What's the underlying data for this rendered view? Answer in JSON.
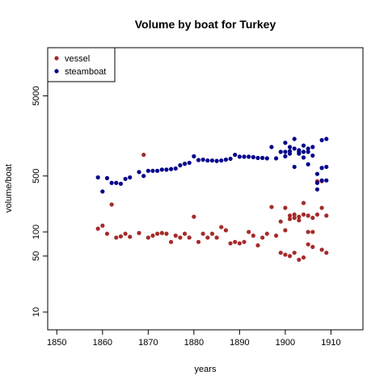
{
  "chart_data": {
    "type": "scatter",
    "title": "Volume by boat for Turkey",
    "xlabel": "years",
    "ylabel": "volume/boat",
    "xlim": [
      1848,
      1917
    ],
    "ylim": [
      6,
      20000
    ],
    "y_scale": "log",
    "x_ticks": [
      1850,
      1860,
      1870,
      1880,
      1890,
      1900,
      1910
    ],
    "y_ticks": [
      10,
      50,
      100,
      500,
      5000
    ],
    "grid": false,
    "legend_position": "top-left",
    "series": [
      {
        "name": "vessel",
        "color": "#a52a2a",
        "points": [
          [
            1859,
            110
          ],
          [
            1860,
            120
          ],
          [
            1861,
            95
          ],
          [
            1862,
            220
          ],
          [
            1863,
            85
          ],
          [
            1864,
            88
          ],
          [
            1865,
            95
          ],
          [
            1866,
            87
          ],
          [
            1868,
            97
          ],
          [
            1869,
            920
          ],
          [
            1870,
            85
          ],
          [
            1871,
            90
          ],
          [
            1872,
            95
          ],
          [
            1873,
            97
          ],
          [
            1874,
            95
          ],
          [
            1875,
            75
          ],
          [
            1876,
            90
          ],
          [
            1877,
            85
          ],
          [
            1878,
            95
          ],
          [
            1879,
            85
          ],
          [
            1880,
            155
          ],
          [
            1881,
            75
          ],
          [
            1882,
            95
          ],
          [
            1883,
            85
          ],
          [
            1884,
            95
          ],
          [
            1885,
            85
          ],
          [
            1886,
            115
          ],
          [
            1887,
            105
          ],
          [
            1888,
            72
          ],
          [
            1889,
            75
          ],
          [
            1890,
            72
          ],
          [
            1891,
            75
          ],
          [
            1892,
            100
          ],
          [
            1893,
            90
          ],
          [
            1894,
            68
          ],
          [
            1895,
            85
          ],
          [
            1896,
            95
          ],
          [
            1897,
            205
          ],
          [
            1898,
            90
          ],
          [
            1899,
            135
          ],
          [
            1899,
            55
          ],
          [
            1900,
            105
          ],
          [
            1900,
            52
          ],
          [
            1900,
            200
          ],
          [
            1901,
            50
          ],
          [
            1901,
            160
          ],
          [
            1901,
            145
          ],
          [
            1902,
            55
          ],
          [
            1902,
            165
          ],
          [
            1902,
            150
          ],
          [
            1903,
            45
          ],
          [
            1903,
            140
          ],
          [
            1903,
            155
          ],
          [
            1904,
            165
          ],
          [
            1904,
            230
          ],
          [
            1904,
            48
          ],
          [
            1905,
            100
          ],
          [
            1905,
            160
          ],
          [
            1905,
            70
          ],
          [
            1906,
            150
          ],
          [
            1906,
            65
          ],
          [
            1906,
            100
          ],
          [
            1907,
            165
          ],
          [
            1907,
            430
          ],
          [
            1908,
            200
          ],
          [
            1908,
            60
          ],
          [
            1908,
            430
          ],
          [
            1909,
            160
          ],
          [
            1909,
            55
          ]
        ]
      },
      {
        "name": "steamboat",
        "color": "#00008b",
        "points": [
          [
            1859,
            480
          ],
          [
            1860,
            320
          ],
          [
            1861,
            470
          ],
          [
            1862,
            410
          ],
          [
            1863,
            410
          ],
          [
            1864,
            400
          ],
          [
            1865,
            460
          ],
          [
            1866,
            480
          ],
          [
            1868,
            560
          ],
          [
            1869,
            500
          ],
          [
            1870,
            580
          ],
          [
            1871,
            580
          ],
          [
            1872,
            580
          ],
          [
            1873,
            600
          ],
          [
            1874,
            600
          ],
          [
            1875,
            610
          ],
          [
            1876,
            620
          ],
          [
            1877,
            680
          ],
          [
            1878,
            710
          ],
          [
            1879,
            730
          ],
          [
            1880,
            880
          ],
          [
            1881,
            790
          ],
          [
            1882,
            800
          ],
          [
            1883,
            780
          ],
          [
            1884,
            780
          ],
          [
            1885,
            770
          ],
          [
            1886,
            780
          ],
          [
            1887,
            800
          ],
          [
            1888,
            820
          ],
          [
            1889,
            920
          ],
          [
            1890,
            870
          ],
          [
            1891,
            870
          ],
          [
            1892,
            870
          ],
          [
            1893,
            860
          ],
          [
            1894,
            840
          ],
          [
            1895,
            840
          ],
          [
            1896,
            830
          ],
          [
            1897,
            1150
          ],
          [
            1898,
            830
          ],
          [
            1899,
            1000
          ],
          [
            1900,
            880
          ],
          [
            1900,
            1000
          ],
          [
            1900,
            1300
          ],
          [
            1901,
            1020
          ],
          [
            1901,
            950
          ],
          [
            1901,
            1150
          ],
          [
            1902,
            650
          ],
          [
            1902,
            1100
          ],
          [
            1902,
            1450
          ],
          [
            1903,
            1000
          ],
          [
            1903,
            1050
          ],
          [
            1903,
            950
          ],
          [
            1904,
            1000
          ],
          [
            1904,
            1200
          ],
          [
            1904,
            850
          ],
          [
            1905,
            1100
          ],
          [
            1905,
            700
          ],
          [
            1905,
            1000
          ],
          [
            1906,
            900
          ],
          [
            1906,
            1150
          ],
          [
            1907,
            530
          ],
          [
            1907,
            410
          ],
          [
            1907,
            340
          ],
          [
            1908,
            630
          ],
          [
            1908,
            1400
          ],
          [
            1908,
            440
          ],
          [
            1909,
            1450
          ],
          [
            1909,
            650
          ],
          [
            1909,
            440
          ]
        ]
      }
    ]
  }
}
